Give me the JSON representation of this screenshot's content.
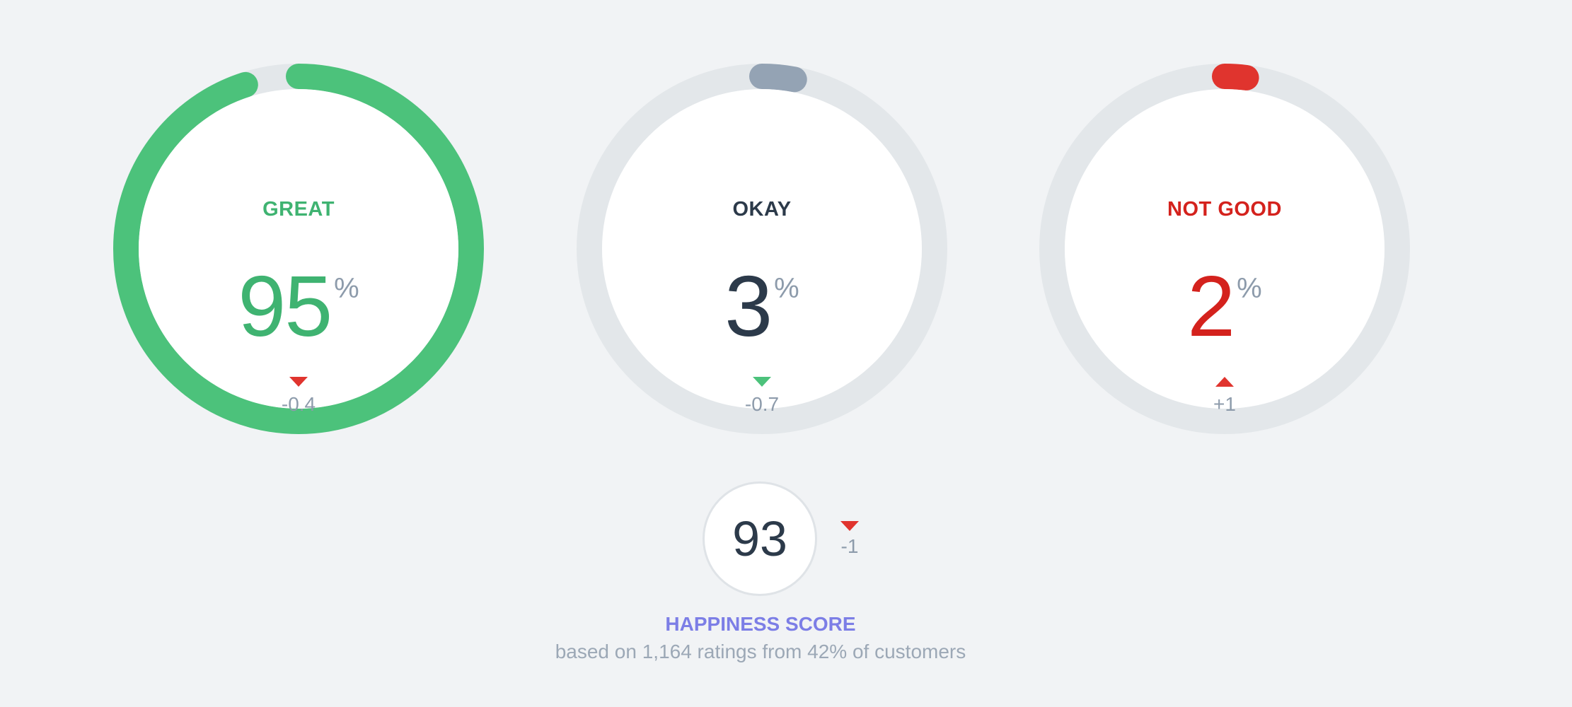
{
  "colors": {
    "great": "#4cc27b",
    "great_text": "#3fb371",
    "okay_arc": "#94a3b4",
    "okay_text": "#2c3a4a",
    "notgood": "#e0342e",
    "notgood_text": "#d4221d",
    "track": "#e3e7ea",
    "down_arrow": "#e0342e",
    "okay_arrow": "#4cc27b"
  },
  "gauges": [
    {
      "label": "GREAT",
      "value": "95",
      "unit": "%",
      "fraction": 0.95,
      "trend": "down",
      "trend_icon": "triangle-down-icon",
      "delta": "-0.4"
    },
    {
      "label": "OKAY",
      "value": "3",
      "unit": "%",
      "fraction": 0.03,
      "trend": "down",
      "trend_icon": "triangle-down-icon",
      "delta": "-0.7"
    },
    {
      "label": "NOT GOOD",
      "value": "2",
      "unit": "%",
      "fraction": 0.02,
      "trend": "up",
      "trend_icon": "triangle-up-icon",
      "delta": "+1"
    }
  ],
  "happiness": {
    "score": "93",
    "trend": "down",
    "trend_icon": "triangle-down-icon",
    "delta": "-1",
    "title": "HAPPINESS SCORE",
    "subtitle": "based on 1,164 ratings from 42% of customers"
  }
}
